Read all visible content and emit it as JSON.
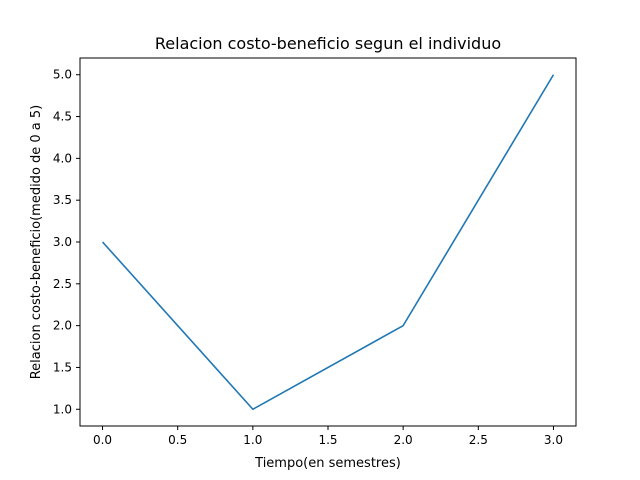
{
  "chart_data": {
    "type": "line",
    "title": "Relacion costo-beneficio segun el individuo",
    "xlabel": "Tiempo(en semestres)",
    "ylabel": "Relacion costo-beneficio(medido de 0 a 5)",
    "x": [
      0,
      1,
      2,
      3
    ],
    "series": [
      {
        "values": [
          3,
          1,
          2,
          5
        ],
        "color": "#1f77b4"
      }
    ],
    "xlim": [
      -0.15,
      3.15
    ],
    "ylim": [
      0.8,
      5.2
    ],
    "xticks": [
      0.0,
      0.5,
      1.0,
      1.5,
      2.0,
      2.5,
      3.0
    ],
    "xtick_labels": [
      "0.0",
      "0.5",
      "1.0",
      "1.5",
      "2.0",
      "2.5",
      "3.0"
    ],
    "yticks": [
      1.0,
      1.5,
      2.0,
      2.5,
      3.0,
      3.5,
      4.0,
      4.5,
      5.0
    ],
    "ytick_labels": [
      "1.0",
      "1.5",
      "2.0",
      "2.5",
      "3.0",
      "3.5",
      "4.0",
      "4.5",
      "5.0"
    ],
    "grid": false,
    "legend": false
  }
}
